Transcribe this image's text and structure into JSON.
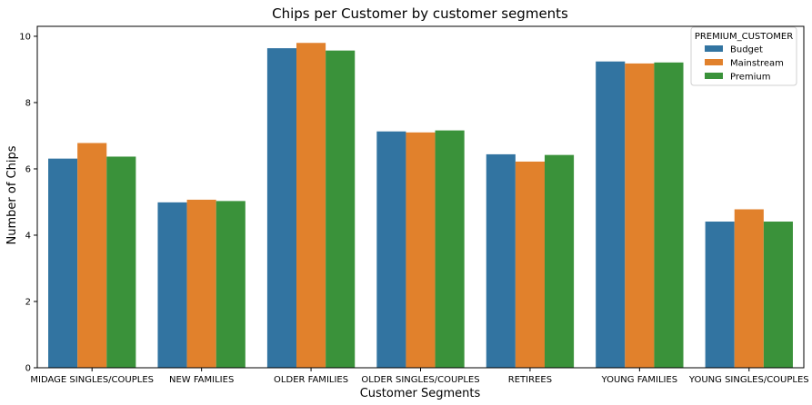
{
  "chart_data": {
    "type": "bar",
    "title": "Chips per Customer by customer segments",
    "xlabel": "Customer Segments",
    "ylabel": "Number of Chips",
    "ylim": [
      0,
      10.3
    ],
    "yticks": [
      0,
      2,
      4,
      6,
      8,
      10
    ],
    "grid": false,
    "legend_position": "top-right",
    "legend_title": "PREMIUM_CUSTOMER",
    "categories": [
      "MIDAGE SINGLES/COUPLES",
      "NEW FAMILIES",
      "OLDER FAMILIES",
      "OLDER SINGLES/COUPLES",
      "RETIREES",
      "YOUNG FAMILIES",
      "YOUNG SINGLES/COUPLES"
    ],
    "series": [
      {
        "name": "Budget",
        "color": "#3274a1",
        "values": [
          6.31,
          4.99,
          9.64,
          7.13,
          6.44,
          9.24,
          4.41
        ]
      },
      {
        "name": "Mainstream",
        "color": "#e1812c",
        "values": [
          6.78,
          5.07,
          9.8,
          7.1,
          6.22,
          9.18,
          4.78
        ]
      },
      {
        "name": "Premium",
        "color": "#3a923a",
        "values": [
          6.37,
          5.03,
          9.57,
          7.16,
          6.42,
          9.21,
          4.41
        ]
      }
    ]
  }
}
